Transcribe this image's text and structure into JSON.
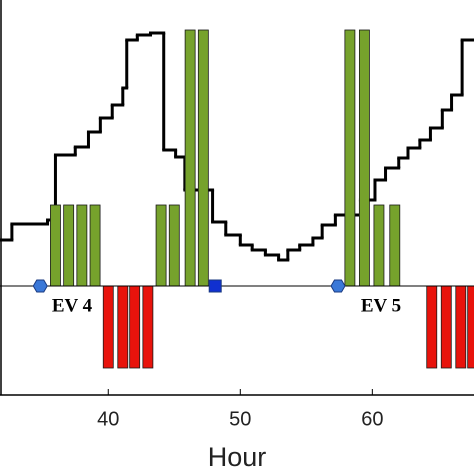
{
  "chart_data": {
    "type": "combo",
    "xlabel": "Hour",
    "xlim": [
      31.8,
      67.7
    ],
    "ylim": [
      -4.36,
      11.44
    ],
    "xticks": [
      40,
      50,
      60
    ],
    "annotations": [
      "EV 4",
      "EV 5"
    ],
    "series": [
      {
        "type": "step",
        "color": "#000000",
        "x": [
          31.8,
          32.7,
          35.4,
          36.0,
          37.5,
          38.5,
          39.4,
          40.3,
          41.1,
          41.4,
          42.2,
          43.2,
          44.2,
          45.1,
          45.8,
          47.9,
          48.9,
          50.0,
          50.9,
          51.9,
          52.9,
          53.6,
          54.5,
          55.5,
          56.2,
          57.2,
          59.1,
          60.2,
          61.0,
          62.0,
          62.7,
          63.6,
          64.4,
          65.3,
          66.0,
          66.8
        ],
        "values": [
          1.84,
          2.48,
          2.64,
          5.24,
          5.56,
          6.16,
          6.72,
          7.24,
          7.92,
          9.84,
          10.04,
          10.12,
          5.44,
          5.16,
          3.84,
          2.56,
          2.04,
          1.64,
          1.44,
          1.24,
          1.04,
          1.44,
          1.64,
          1.92,
          2.44,
          2.84,
          3.44,
          4.24,
          4.72,
          5.12,
          5.52,
          5.84,
          6.32,
          7.04,
          7.64,
          9.84
        ]
      },
      {
        "type": "bar",
        "color": "#76a22c",
        "x": [
          36,
          37,
          38,
          39,
          44,
          45,
          46.2,
          47.2,
          58.3,
          59.4,
          60.5,
          61.7
        ],
        "values": [
          3.24,
          3.24,
          3.24,
          3.24,
          3.24,
          3.24,
          10.24,
          10.24,
          10.24,
          10.24,
          3.24,
          3.24
        ]
      },
      {
        "type": "bar",
        "color": "#e8130c",
        "x": [
          40,
          41.1,
          42,
          43,
          64.5,
          65.6,
          66.7,
          67.6
        ],
        "values": [
          -3.28,
          -3.28,
          -3.28,
          -3.28,
          -3.28,
          -3.28,
          -3.28,
          -3.28
        ]
      },
      {
        "type": "scatter",
        "marker": "hexagon",
        "color": "#3a78d8",
        "x": [
          34.85,
          57.4
        ],
        "values": [
          0,
          0
        ]
      },
      {
        "type": "scatter",
        "marker": "square",
        "color": "#1030d0",
        "x": [
          48.1
        ],
        "values": [
          0
        ]
      }
    ]
  }
}
